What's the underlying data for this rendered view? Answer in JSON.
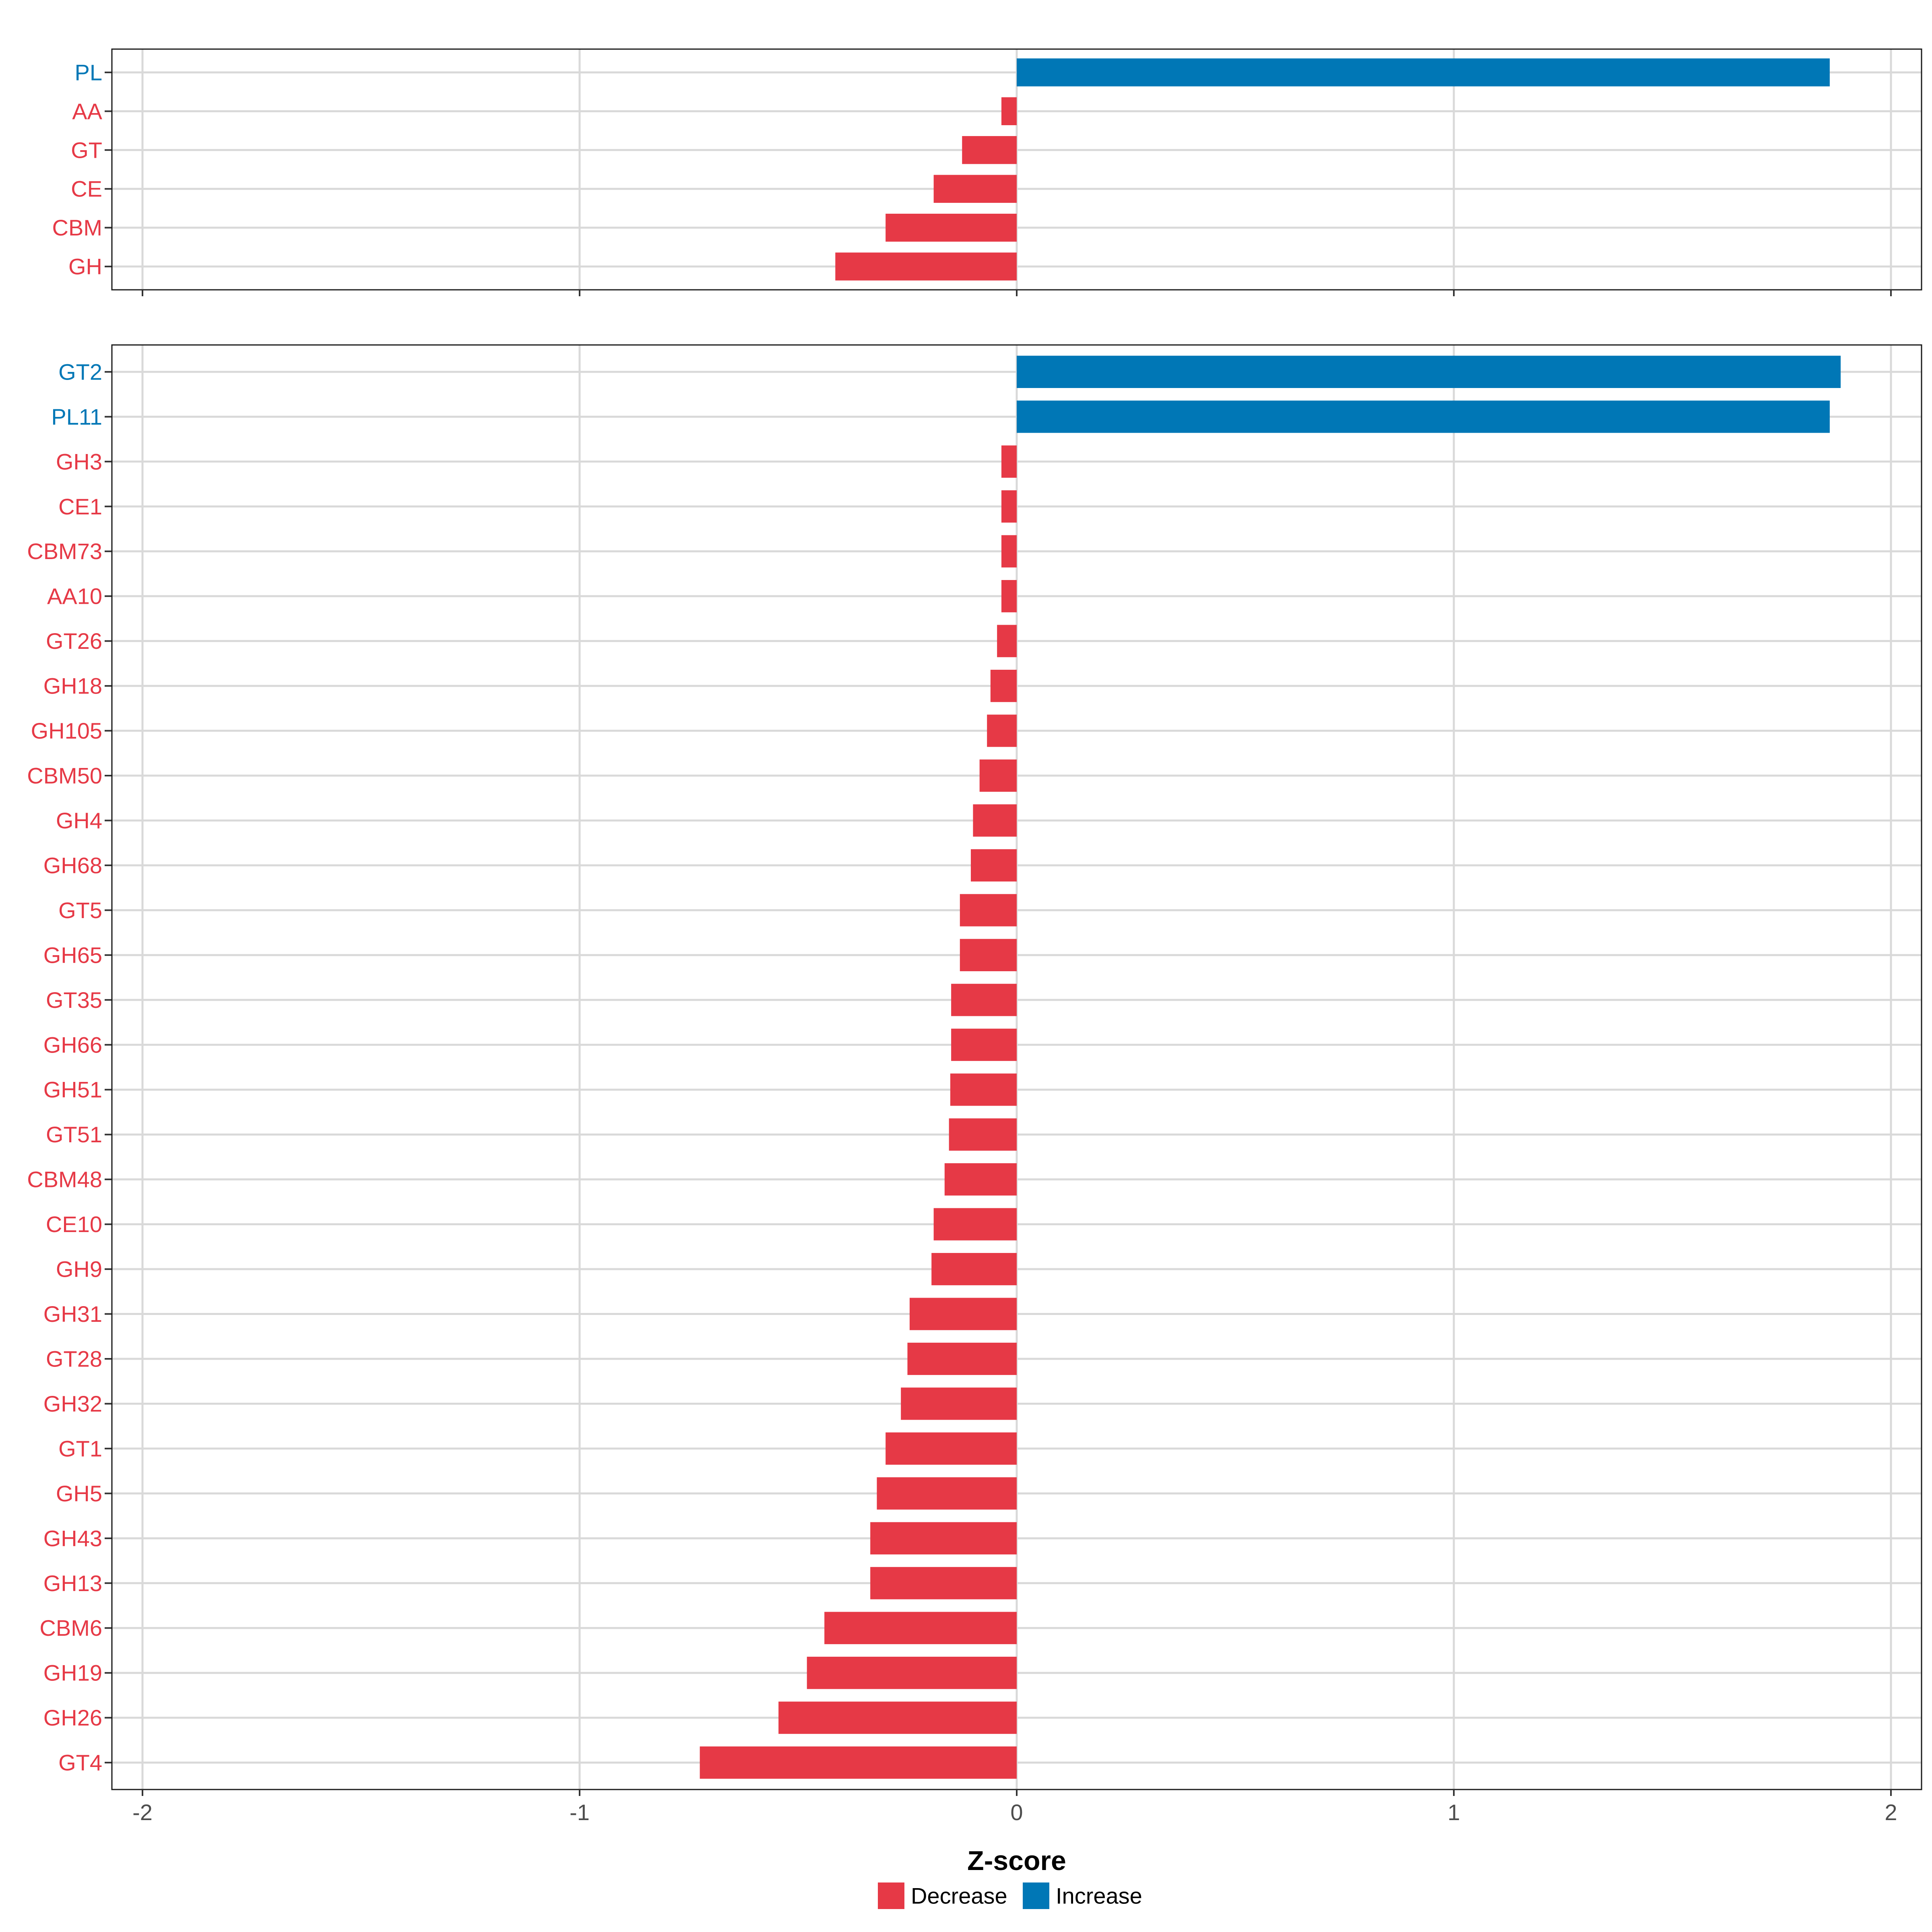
{
  "chart_data": {
    "type": "bar",
    "orientation": "horizontal",
    "xlabel": "Z-score",
    "xlim": [
      -2.07,
      2.07
    ],
    "x_ticks": [
      -2,
      -1,
      0,
      1,
      2
    ],
    "x_tick_labels": [
      "-2",
      "-1",
      "0",
      "1",
      "2"
    ],
    "grid": true,
    "legend_position": "bottom",
    "legend": [
      {
        "label": "Decrease",
        "color": "#E63946"
      },
      {
        "label": "Increase",
        "color": "#0077B6"
      }
    ],
    "colors": {
      "Decrease": "#E63946",
      "Increase": "#0077B6"
    },
    "panels": [
      {
        "categories": [
          "PL",
          "AA",
          "GT",
          "CE",
          "CBM",
          "GH"
        ],
        "values": [
          1.86,
          -0.035,
          -0.125,
          -0.19,
          -0.3,
          -0.415
        ],
        "direction": [
          "Increase",
          "Decrease",
          "Decrease",
          "Decrease",
          "Decrease",
          "Decrease"
        ]
      },
      {
        "categories": [
          "GT2",
          "PL11",
          "GH3",
          "CE1",
          "CBM73",
          "AA10",
          "GT26",
          "GH18",
          "GH105",
          "CBM50",
          "GH4",
          "GH68",
          "GT5",
          "GH65",
          "GT35",
          "GH66",
          "GH51",
          "GT51",
          "CBM48",
          "CE10",
          "GH9",
          "GH31",
          "GT28",
          "GH32",
          "GT1",
          "GH5",
          "GH43",
          "GH13",
          "CBM6",
          "GH19",
          "GH26",
          "GT4"
        ],
        "values": [
          1.885,
          1.86,
          -0.035,
          -0.035,
          -0.035,
          -0.035,
          -0.045,
          -0.06,
          -0.068,
          -0.085,
          -0.1,
          -0.105,
          -0.13,
          -0.13,
          -0.15,
          -0.15,
          -0.152,
          -0.155,
          -0.165,
          -0.19,
          -0.195,
          -0.245,
          -0.25,
          -0.265,
          -0.3,
          -0.32,
          -0.335,
          -0.335,
          -0.44,
          -0.48,
          -0.545,
          -0.725
        ],
        "direction": [
          "Increase",
          "Increase",
          "Decrease",
          "Decrease",
          "Decrease",
          "Decrease",
          "Decrease",
          "Decrease",
          "Decrease",
          "Decrease",
          "Decrease",
          "Decrease",
          "Decrease",
          "Decrease",
          "Decrease",
          "Decrease",
          "Decrease",
          "Decrease",
          "Decrease",
          "Decrease",
          "Decrease",
          "Decrease",
          "Decrease",
          "Decrease",
          "Decrease",
          "Decrease",
          "Decrease",
          "Decrease",
          "Decrease",
          "Decrease",
          "Decrease",
          "Decrease"
        ]
      }
    ]
  }
}
